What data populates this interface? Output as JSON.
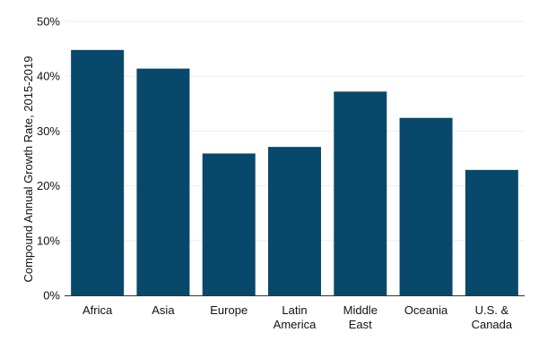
{
  "chart_data": {
    "type": "bar",
    "categories": [
      [
        "Africa"
      ],
      [
        "Asia"
      ],
      [
        "Europe"
      ],
      [
        "Latin",
        "America"
      ],
      [
        "Middle",
        "East"
      ],
      [
        "Oceania"
      ],
      [
        "U.S. &",
        "Canada"
      ]
    ],
    "values": [
      44.8,
      41.4,
      25.9,
      27.1,
      37.2,
      32.4,
      22.9
    ],
    "ylabel": "Compound Annual Growth Rate, 2015-2019",
    "ylim": [
      0,
      50
    ],
    "yticks": [
      0,
      10,
      20,
      30,
      40,
      50
    ],
    "ytick_suffix": "%",
    "bar_color": "#08496b",
    "grid": true
  }
}
